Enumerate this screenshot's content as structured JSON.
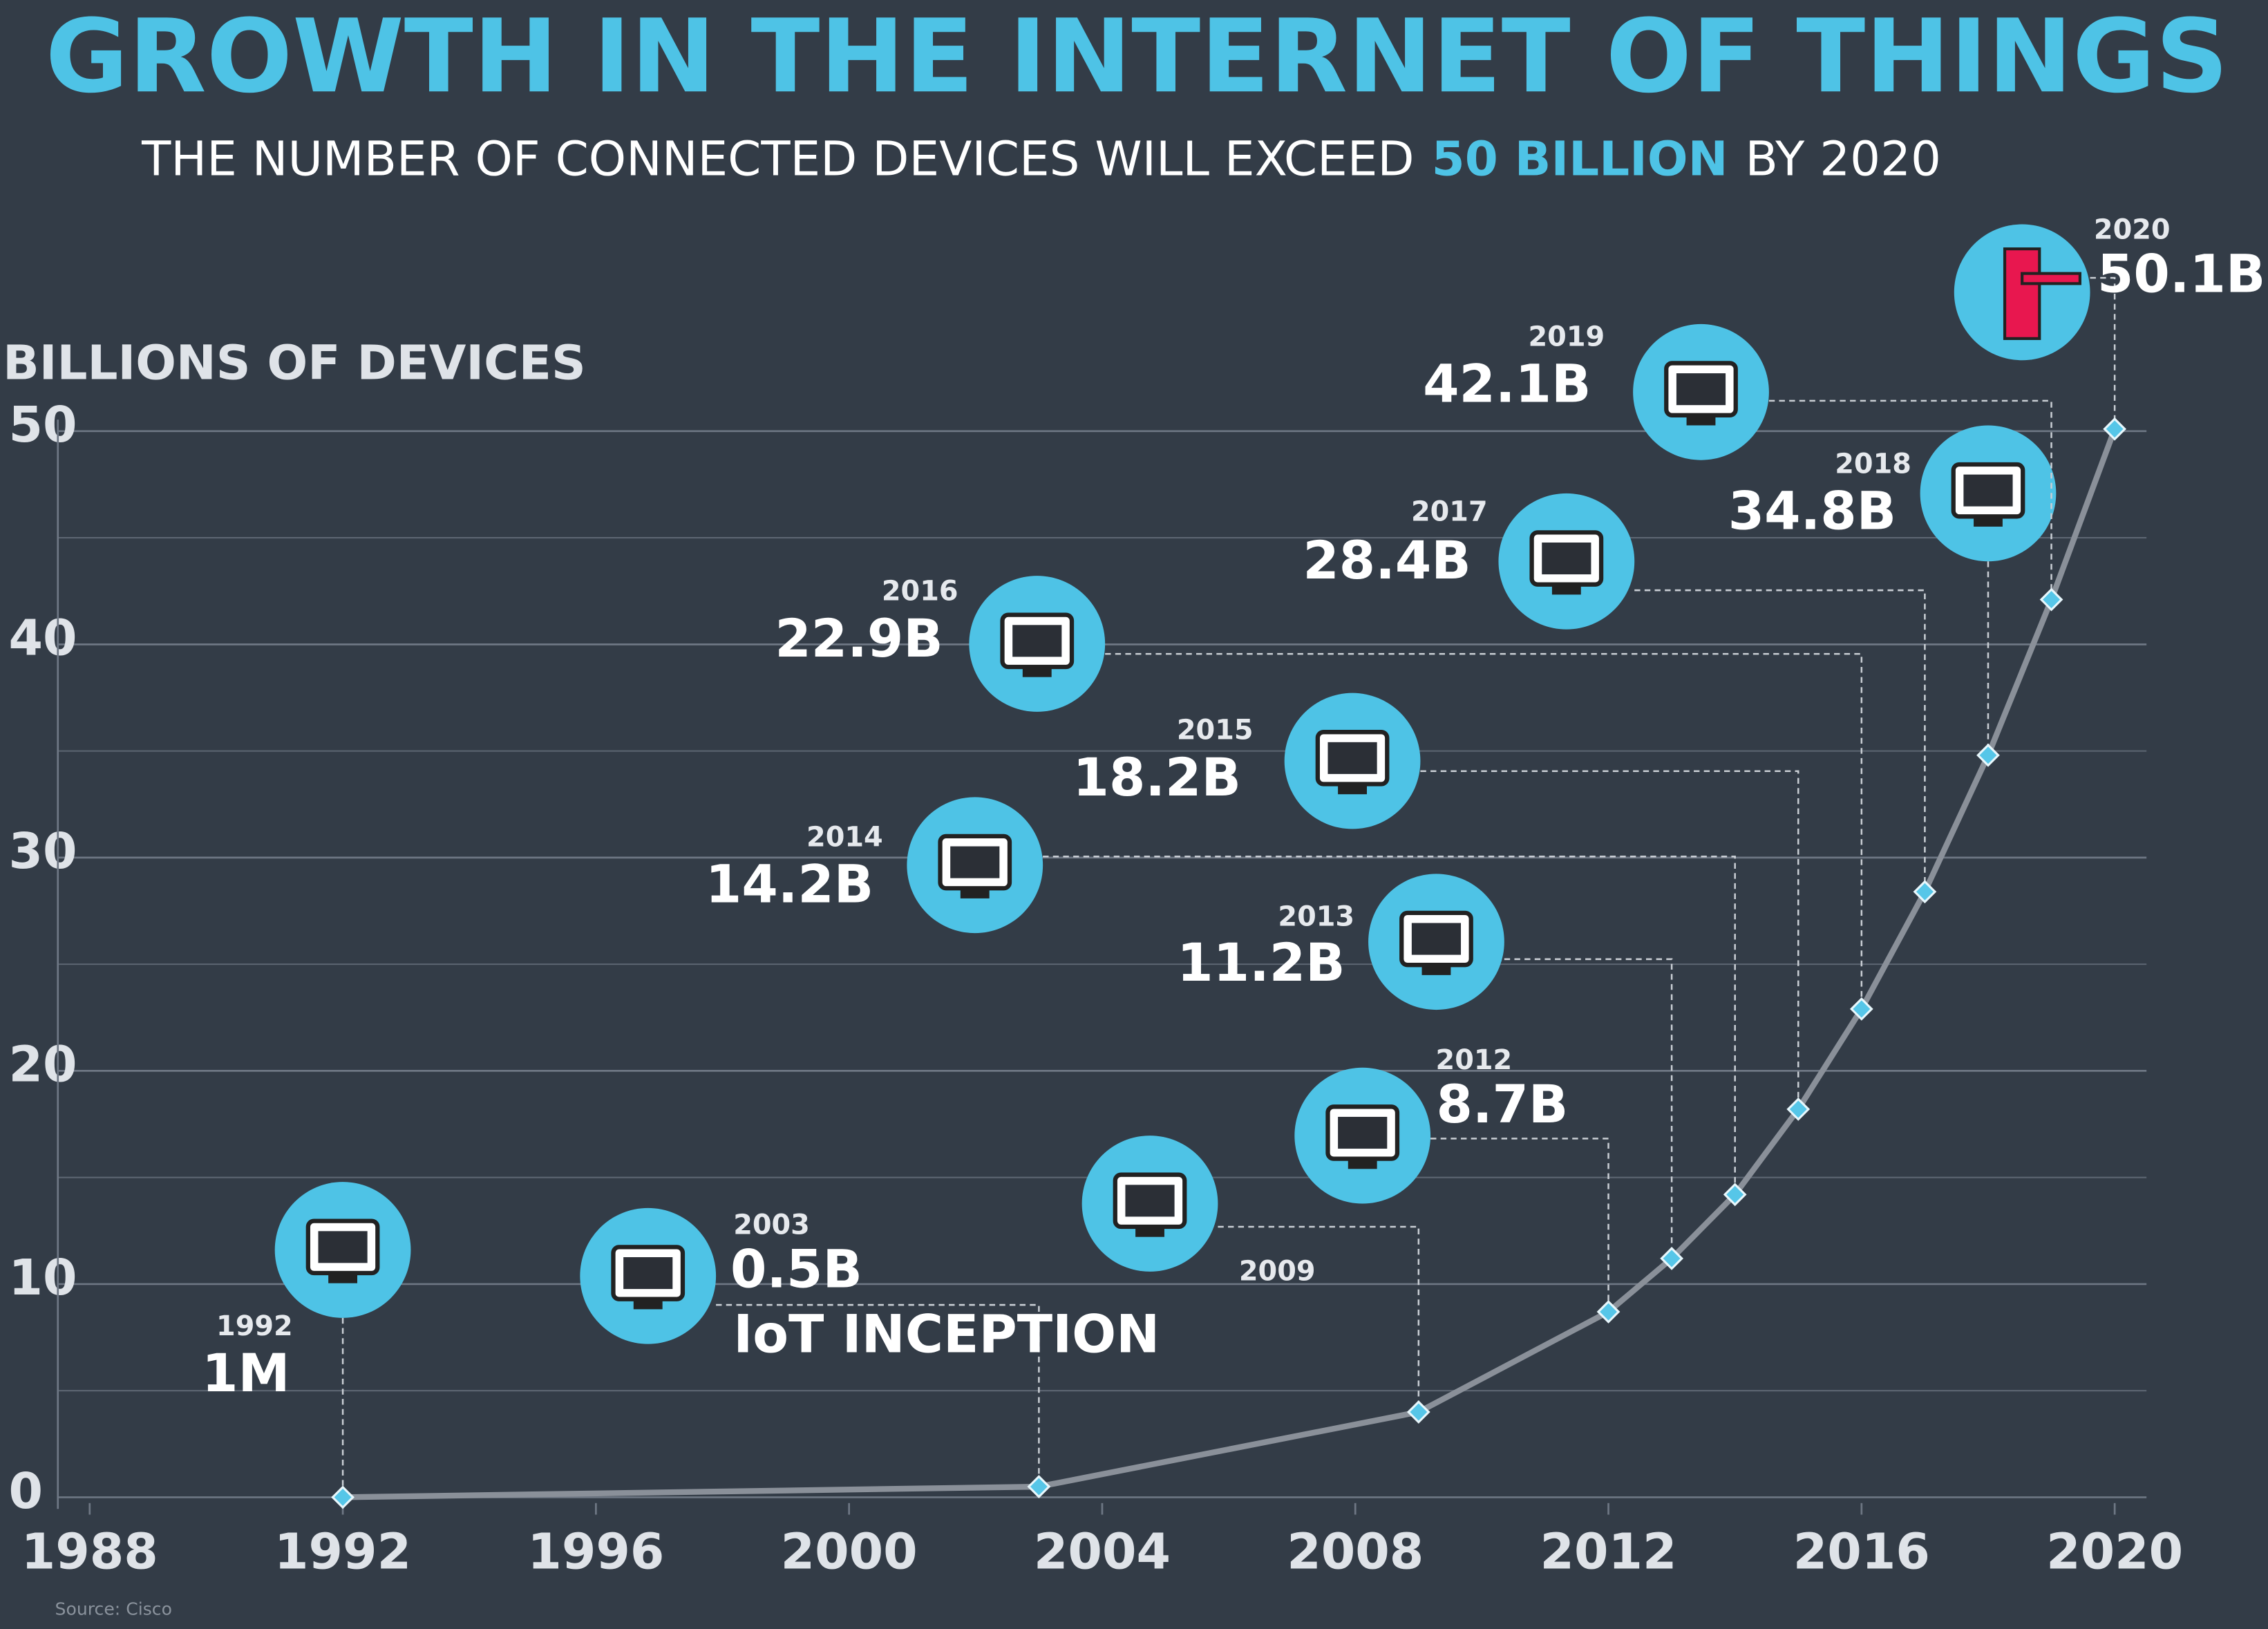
{
  "chart_data": {
    "type": "line",
    "title": "GROWTH IN THE INTERNET OF THINGS",
    "subtitle_start": "THE NUMBER OF CONNECTED DEVICES WILL EXCEED",
    "subtitle_highlight": "50 BILLION",
    "subtitle_end": "BY 2020",
    "ylabel": "BILLIONS OF DEVICES",
    "annotation": "IoT INCEPTION",
    "source": "Source: Cisco",
    "x": [
      1992,
      2003,
      2009,
      2012,
      2013,
      2014,
      2015,
      2016,
      2017,
      2018,
      2019,
      2020
    ],
    "values": [
      0.001,
      0.5,
      4,
      8.7,
      11.2,
      14.2,
      18.2,
      22.9,
      28.4,
      34.8,
      42.1,
      50.1
    ],
    "value_labels": [
      "1M",
      "0.5B",
      null,
      "8.7B",
      "11.2B",
      "14.2B",
      "18.2B",
      "22.9B",
      "28.4B",
      "34.8B",
      "42.1B",
      "50.1B"
    ],
    "color": "#8a9099",
    "marker_color": "#56c6e8",
    "xlim": [
      1988,
      2020
    ],
    "xticks": [
      1988,
      1992,
      1996,
      2000,
      2004,
      2008,
      2012,
      2016,
      2020
    ],
    "ylim": [
      0,
      50
    ],
    "yticks": [
      0,
      10,
      20,
      30,
      40,
      50
    ],
    "minor_grid": [
      5,
      15,
      25,
      35,
      45
    ],
    "grid": true
  }
}
